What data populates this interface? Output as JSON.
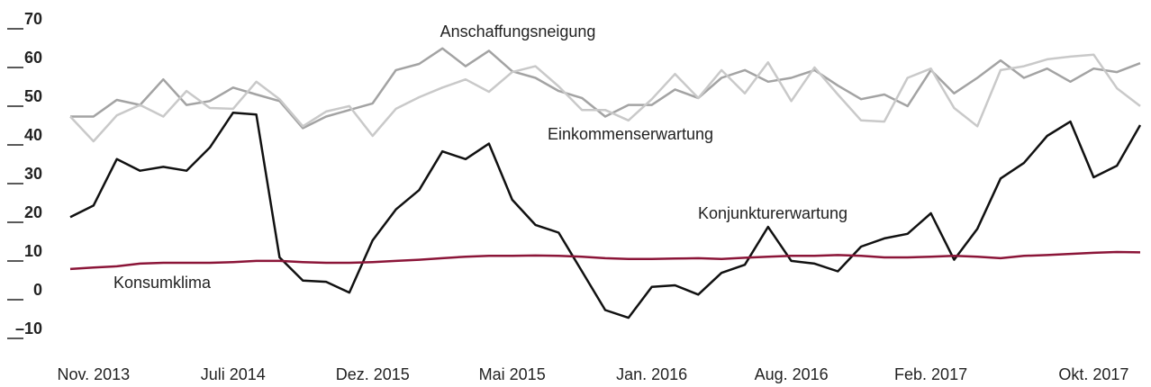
{
  "chart_data": {
    "type": "line",
    "categories": [
      null,
      "Nov. 2013",
      null,
      null,
      null,
      null,
      null,
      "Juli 2014",
      null,
      null,
      null,
      null,
      null,
      "Dez. 2015",
      null,
      null,
      null,
      null,
      null,
      "Mai 2015",
      null,
      null,
      null,
      null,
      null,
      "Jan. 2016",
      null,
      null,
      null,
      null,
      null,
      "Aug. 2016",
      null,
      null,
      null,
      null,
      null,
      "Feb. 2017",
      null,
      null,
      null,
      null,
      null,
      null,
      "Okt. 2017",
      null,
      null
    ],
    "ylim": [
      -10,
      70
    ],
    "yticks": [
      {
        "value": -10,
        "label": "–10"
      },
      0,
      10,
      20,
      30,
      40,
      50,
      60,
      70
    ],
    "series": [
      {
        "name": "Anschaffungsneigung",
        "color": "#a3a3a3",
        "values": [
          45,
          45,
          49.3,
          48,
          54.6,
          48,
          49,
          52.5,
          50.7,
          49,
          42,
          45,
          46.7,
          48.4,
          57,
          58.6,
          62.6,
          58,
          62,
          56.7,
          55,
          51.6,
          49.8,
          45,
          48,
          48,
          52,
          49.8,
          55,
          57,
          54,
          55,
          57,
          53,
          49.5,
          50.7,
          47.7,
          57,
          51,
          55,
          59.5,
          55,
          57.4,
          54,
          57.4,
          56.5,
          58.8
        ]
      },
      {
        "name": "Einkommenserwartung",
        "color": "#c9c9c9",
        "values": [
          45,
          38.6,
          45.3,
          48,
          45,
          51.6,
          47.2,
          47,
          54,
          49.5,
          42.5,
          46.3,
          47.7,
          40,
          47,
          50,
          52.5,
          54.6,
          51.4,
          56.5,
          58,
          52.8,
          46.7,
          46.7,
          44,
          49.5,
          56,
          49.8,
          57,
          51,
          59,
          49,
          57.7,
          50.7,
          44,
          43.7,
          55,
          57.4,
          47.2,
          42.5,
          57,
          58,
          59.8,
          60.5,
          61,
          52.3,
          47.7
        ]
      },
      {
        "name": "Konjunkturerwartung",
        "color": "#111111",
        "values": [
          19,
          22,
          34,
          31,
          32,
          31,
          37,
          46,
          45.5,
          8.6,
          2.6,
          2.3,
          -0.5,
          13,
          21,
          26,
          36,
          34,
          38,
          23.5,
          17,
          15,
          5,
          -5,
          -7,
          1,
          1.4,
          -1,
          4.6,
          6.7,
          16.5,
          7.7,
          7,
          5,
          11.4,
          13.5,
          14.7,
          20,
          8,
          16,
          29,
          33,
          40,
          43.7,
          29.3,
          32.3,
          42.8
        ]
      },
      {
        "name": "Konsumklima",
        "color": "#8b1538",
        "values": [
          5.6,
          6,
          6.3,
          7,
          7.2,
          7.2,
          7.2,
          7.4,
          7.7,
          7.7,
          7.4,
          7.2,
          7.2,
          7.4,
          7.7,
          8,
          8.4,
          8.8,
          9,
          9,
          9.1,
          9,
          8.8,
          8.4,
          8.2,
          8.2,
          8.3,
          8.4,
          8.2,
          8.5,
          8.8,
          9,
          9,
          9.2,
          9,
          8.6,
          8.6,
          8.8,
          9,
          8.8,
          8.4,
          9,
          9.2,
          9.5,
          9.8,
          10,
          9.9
        ]
      }
    ]
  }
}
